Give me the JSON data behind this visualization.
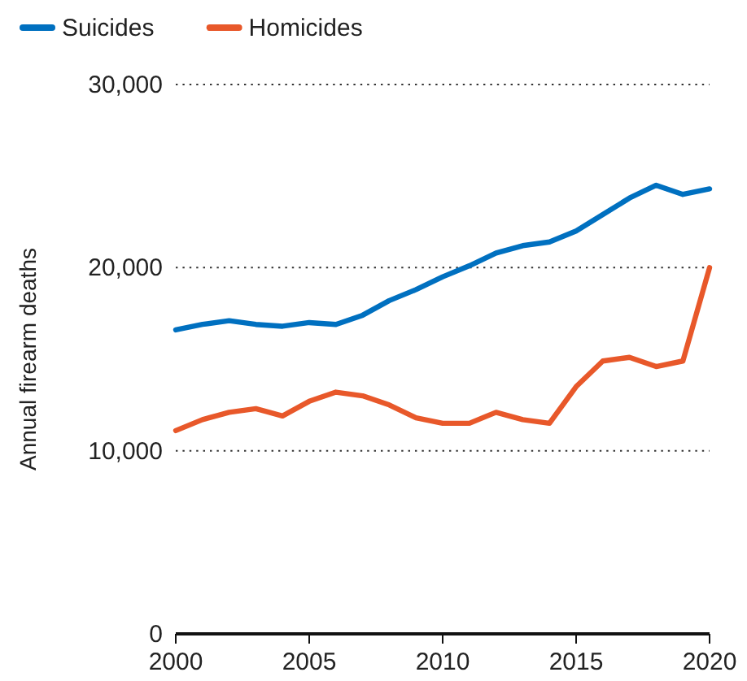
{
  "chart_data": {
    "type": "line",
    "ylabel": "Annual firearm deaths",
    "x": [
      2000,
      2001,
      2002,
      2003,
      2004,
      2005,
      2006,
      2007,
      2008,
      2009,
      2010,
      2011,
      2012,
      2013,
      2014,
      2015,
      2016,
      2017,
      2018,
      2019,
      2020
    ],
    "series": [
      {
        "name": "Suicides",
        "color": "#0070c0",
        "values": [
          16600,
          16900,
          17100,
          16900,
          16800,
          17000,
          16900,
          17400,
          18200,
          18800,
          19500,
          20100,
          20800,
          21200,
          21400,
          22000,
          22900,
          23800,
          24500,
          24000,
          24300
        ]
      },
      {
        "name": "Homicides",
        "color": "#e8582a",
        "values": [
          11100,
          11700,
          12100,
          12300,
          11900,
          12700,
          13200,
          13000,
          12500,
          11800,
          11500,
          11500,
          12100,
          11700,
          11500,
          13500,
          14900,
          15100,
          14600,
          14900,
          20000
        ]
      }
    ],
    "xlim": [
      2000,
      2020
    ],
    "xticks": [
      2000,
      2005,
      2010,
      2015,
      2020
    ],
    "ylim": [
      0,
      30000
    ],
    "yticks": [
      {
        "value": 0,
        "label": "0"
      },
      {
        "value": 10000,
        "label": "10,000"
      },
      {
        "value": 20000,
        "label": "20,000"
      },
      {
        "value": 30000,
        "label": "30,000"
      }
    ],
    "grid": "y",
    "legend": "top left",
    "marker": "none",
    "line_style": "solid"
  }
}
